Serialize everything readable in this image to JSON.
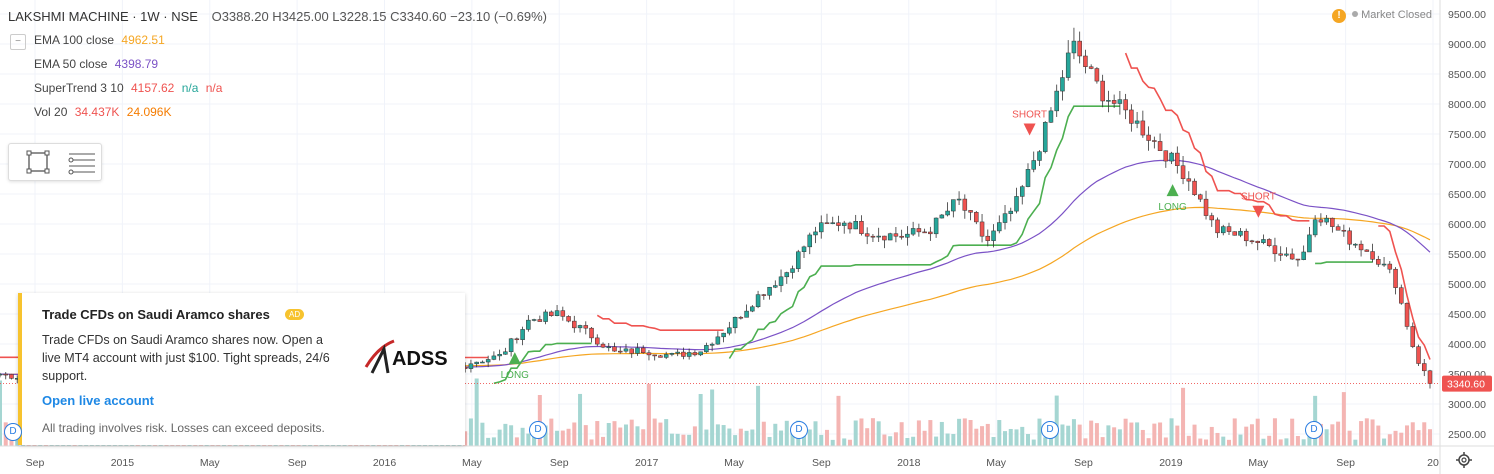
{
  "header": {
    "symbol": "LAKSHMI MACHINE · 1W · NSE",
    "ohlc": "O3388.20 H3425.00 L3228.15 C3340.60 −23.10 (−0.69%)"
  },
  "indicators": [
    {
      "name": "EMA 100 close",
      "value": "4962.51",
      "color": "#f5a623"
    },
    {
      "name": "EMA 50 close",
      "value": "4398.79",
      "color": "#7b52c6"
    },
    {
      "name": "SuperTrend 3 10",
      "value": "4157.62",
      "extra1": "n/a",
      "extra2": "n/a",
      "color": "#ef5350"
    },
    {
      "name": "Vol 20",
      "value": "34.437K",
      "extra1": "24.096K",
      "color": "#ef5350",
      "color2": "#f57c00"
    }
  ],
  "market_status": {
    "warn": "!",
    "label": "Market Closed"
  },
  "ad": {
    "title": "Trade CFDs on Saudi Aramco shares",
    "badge": "AD",
    "body": "Trade CFDs on Saudi Aramco shares now. Open a live MT4 account with just $100. Tight spreads, 24/6 support.",
    "cta": "Open live account",
    "disclaimer": "All trading involves risk. Losses can exceed deposits.",
    "logo_text": "ADSS"
  },
  "dividend_marker": "D",
  "chart_data": {
    "type": "candlestick",
    "price_axis": [
      "9500.00",
      "9000.00",
      "8500.00",
      "8000.00",
      "7500.00",
      "7000.00",
      "6500.00",
      "6000.00",
      "5500.00",
      "5000.00",
      "4500.00",
      "4000.00",
      "3500.00",
      "3000.00",
      "2500.00"
    ],
    "ylim": [
      2300,
      9600
    ],
    "last_price": "3340.60",
    "time_axis": [
      "Sep",
      "2015",
      "May",
      "Sep",
      "2016",
      "May",
      "Sep",
      "2017",
      "May",
      "Sep",
      "2018",
      "May",
      "Sep",
      "2019",
      "May",
      "Sep",
      "20"
    ],
    "signals": [
      {
        "label": "SHORT",
        "type": "short",
        "t": 0.18
      },
      {
        "label": "LONG",
        "type": "long",
        "t": 0.36
      },
      {
        "label": "SHORT",
        "type": "short",
        "t": 0.72
      },
      {
        "label": "LONG",
        "type": "long",
        "t": 0.82
      },
      {
        "label": "SHORT",
        "type": "short",
        "t": 0.88
      }
    ],
    "close_path": [
      [
        0.0,
        3500
      ],
      [
        0.03,
        3400
      ],
      [
        0.06,
        3700
      ],
      [
        0.09,
        4300
      ],
      [
        0.12,
        4100
      ],
      [
        0.15,
        3800
      ],
      [
        0.18,
        3900
      ],
      [
        0.21,
        3600
      ],
      [
        0.24,
        3700
      ],
      [
        0.27,
        3450
      ],
      [
        0.3,
        3380
      ],
      [
        0.33,
        3700
      ],
      [
        0.35,
        3800
      ],
      [
        0.37,
        4400
      ],
      [
        0.39,
        4500
      ],
      [
        0.41,
        4200
      ],
      [
        0.43,
        3850
      ],
      [
        0.45,
        3900
      ],
      [
        0.47,
        3800
      ],
      [
        0.49,
        3900
      ],
      [
        0.51,
        4300
      ],
      [
        0.53,
        4800
      ],
      [
        0.55,
        5200
      ],
      [
        0.57,
        5900
      ],
      [
        0.59,
        6050
      ],
      [
        0.61,
        5850
      ],
      [
        0.63,
        5800
      ],
      [
        0.65,
        5900
      ],
      [
        0.67,
        6400
      ],
      [
        0.69,
        5700
      ],
      [
        0.71,
        6300
      ],
      [
        0.73,
        7500
      ],
      [
        0.75,
        9000
      ],
      [
        0.77,
        8200
      ],
      [
        0.79,
        7800
      ],
      [
        0.81,
        7300
      ],
      [
        0.83,
        6800
      ],
      [
        0.85,
        5900
      ],
      [
        0.87,
        5800
      ],
      [
        0.89,
        5600
      ],
      [
        0.91,
        5400
      ],
      [
        0.92,
        6200
      ],
      [
        0.94,
        5800
      ],
      [
        0.96,
        5500
      ],
      [
        0.975,
        5100
      ],
      [
        0.99,
        3800
      ],
      [
        1.0,
        3340
      ]
    ]
  }
}
